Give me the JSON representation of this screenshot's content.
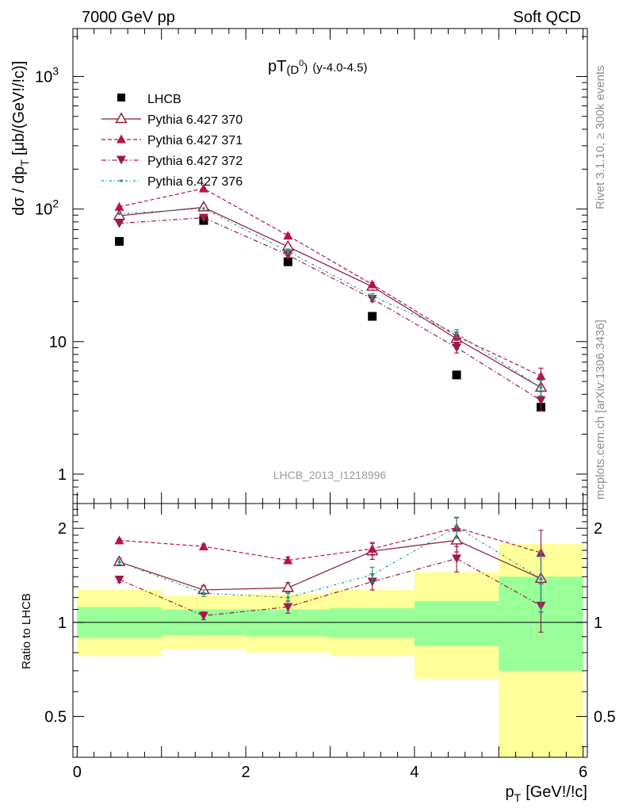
{
  "header": {
    "left": "7000 GeV pp",
    "right": "Soft QCD"
  },
  "side_labels": {
    "rivet": "Rivet 3.1.10, ≥ 300k events",
    "mcplots": "mcplots.cern.ch [arXiv:1306.3436]"
  },
  "colors": {
    "data": "#000000",
    "p370": "#8b1a2b",
    "p371": "#b5134f",
    "p372": "#a01a49",
    "p376": "#189a84",
    "band_inner": "#99ff99",
    "band_outer": "#ffff99"
  },
  "chart_data": [
    {
      "type": "scatter",
      "panel": "main",
      "title_main": "pT",
      "title_sub": "(D",
      "title_sup": "0",
      "title_close": ")",
      "title_range": "(y-4.0-4.5)",
      "watermark": "LHCB_2013_I1218996",
      "ylabel": "dσ / dp",
      "ylabel_sub": "T",
      "ylabel_unit": "[μb/(GeV!/!c)]",
      "yscale": "log",
      "ylim": [
        0.6,
        2300
      ],
      "xlim": [
        -0.05,
        6.05
      ],
      "y_ticks": [
        {
          "v": 1,
          "label": "1"
        },
        {
          "v": 10,
          "label": "10"
        },
        {
          "v": 100,
          "label": "10",
          "sup": "2"
        },
        {
          "v": 1000,
          "label": "10",
          "sup": "3"
        }
      ],
      "x": [
        0.5,
        1.5,
        2.5,
        3.5,
        4.5,
        5.5
      ],
      "x_edges": [
        0,
        1,
        2,
        3,
        4,
        5,
        6
      ],
      "series": [
        {
          "key": "data",
          "name": "LHCB",
          "marker": "square",
          "values": [
            57,
            82,
            40,
            15.5,
            5.6,
            3.2
          ]
        },
        {
          "key": "p370",
          "name": "Pythia 6.427 370",
          "marker": "open-triangle",
          "dash": "",
          "values": [
            89,
            103,
            52,
            26,
            10.5,
            4.5
          ],
          "err": [
            0,
            0,
            2,
            1,
            0.8,
            0.6
          ]
        },
        {
          "key": "p371",
          "name": "Pythia 6.427 371",
          "marker": "triangle-up",
          "dash": "5,3",
          "values": [
            104,
            143,
            63,
            27,
            11,
            5.5
          ],
          "err": [
            0,
            0,
            2,
            1,
            0.8,
            0.8
          ]
        },
        {
          "key": "p372",
          "name": "Pythia 6.427 372",
          "marker": "triangle-down",
          "dash": "6,3,1.5,3",
          "values": [
            78,
            86,
            45,
            21,
            9,
            3.6
          ],
          "err": [
            0,
            0,
            2,
            1,
            0.8,
            0.6
          ]
        },
        {
          "key": "p376",
          "name": "Pythia 6.427 376",
          "marker": "dot",
          "dash": "3,3,1,3",
          "values": [
            92,
            101,
            48,
            22,
            11.5,
            4.5
          ],
          "err": [
            0,
            0,
            2,
            1,
            0.8,
            0.6
          ]
        }
      ]
    },
    {
      "type": "scatter",
      "panel": "ratio",
      "ylabel": "Ratio to LHCB",
      "xlabel": "p",
      "xlabel_sub": "T",
      "xlabel_unit": "[GeV!/!c]",
      "yscale": "log",
      "ylim": [
        0.37,
        2.4
      ],
      "xlim": [
        -0.05,
        6.05
      ],
      "y_ticks": [
        {
          "v": 0.5,
          "label": "0.5"
        },
        {
          "v": 1,
          "label": "1"
        },
        {
          "v": 2,
          "label": "2"
        }
      ],
      "x_ticks": [
        {
          "v": 0,
          "label": "0"
        },
        {
          "v": 2,
          "label": "2"
        },
        {
          "v": 4,
          "label": "4"
        },
        {
          "v": 6,
          "label": "6"
        }
      ],
      "x": [
        0.5,
        1.5,
        2.5,
        3.5,
        4.5,
        5.5
      ],
      "x_edges": [
        0,
        1,
        2,
        3,
        4,
        5,
        6
      ],
      "band_inner": [
        [
          0.89,
          1.12
        ],
        [
          0.91,
          1.1
        ],
        [
          0.9,
          1.1
        ],
        [
          0.89,
          1.11
        ],
        [
          0.84,
          1.17
        ],
        [
          0.7,
          1.4
        ]
      ],
      "band_outer": [
        [
          0.78,
          1.27
        ],
        [
          0.82,
          1.22
        ],
        [
          0.8,
          1.23
        ],
        [
          0.78,
          1.27
        ],
        [
          0.66,
          1.45
        ],
        [
          0.35,
          1.78
        ]
      ],
      "series": [
        {
          "key": "p370",
          "marker": "open-triangle",
          "dash": "",
          "values": [
            1.56,
            1.27,
            1.29,
            1.69,
            1.83,
            1.38
          ],
          "err": [
            0.04,
            0.04,
            0.05,
            0.1,
            0.15,
            0.3
          ]
        },
        {
          "key": "p371",
          "marker": "triangle-up",
          "dash": "5,3",
          "values": [
            1.83,
            1.75,
            1.58,
            1.72,
            2.01,
            1.67
          ],
          "err": [
            0.02,
            0.03,
            0.04,
            0.08,
            0.15,
            0.3
          ]
        },
        {
          "key": "p372",
          "marker": "triangle-down",
          "dash": "6,3,1.5,3",
          "values": [
            1.37,
            1.05,
            1.12,
            1.35,
            1.6,
            1.13
          ],
          "err": [
            0.03,
            0.03,
            0.05,
            0.08,
            0.15,
            0.2
          ]
        },
        {
          "key": "p376",
          "marker": "dot",
          "dash": "3,3,1,3",
          "values": [
            1.56,
            1.24,
            1.2,
            1.42,
            2.02,
            1.38
          ],
          "err": [
            0.03,
            0.03,
            0.05,
            0.08,
            0.15,
            0.3
          ]
        }
      ]
    }
  ]
}
